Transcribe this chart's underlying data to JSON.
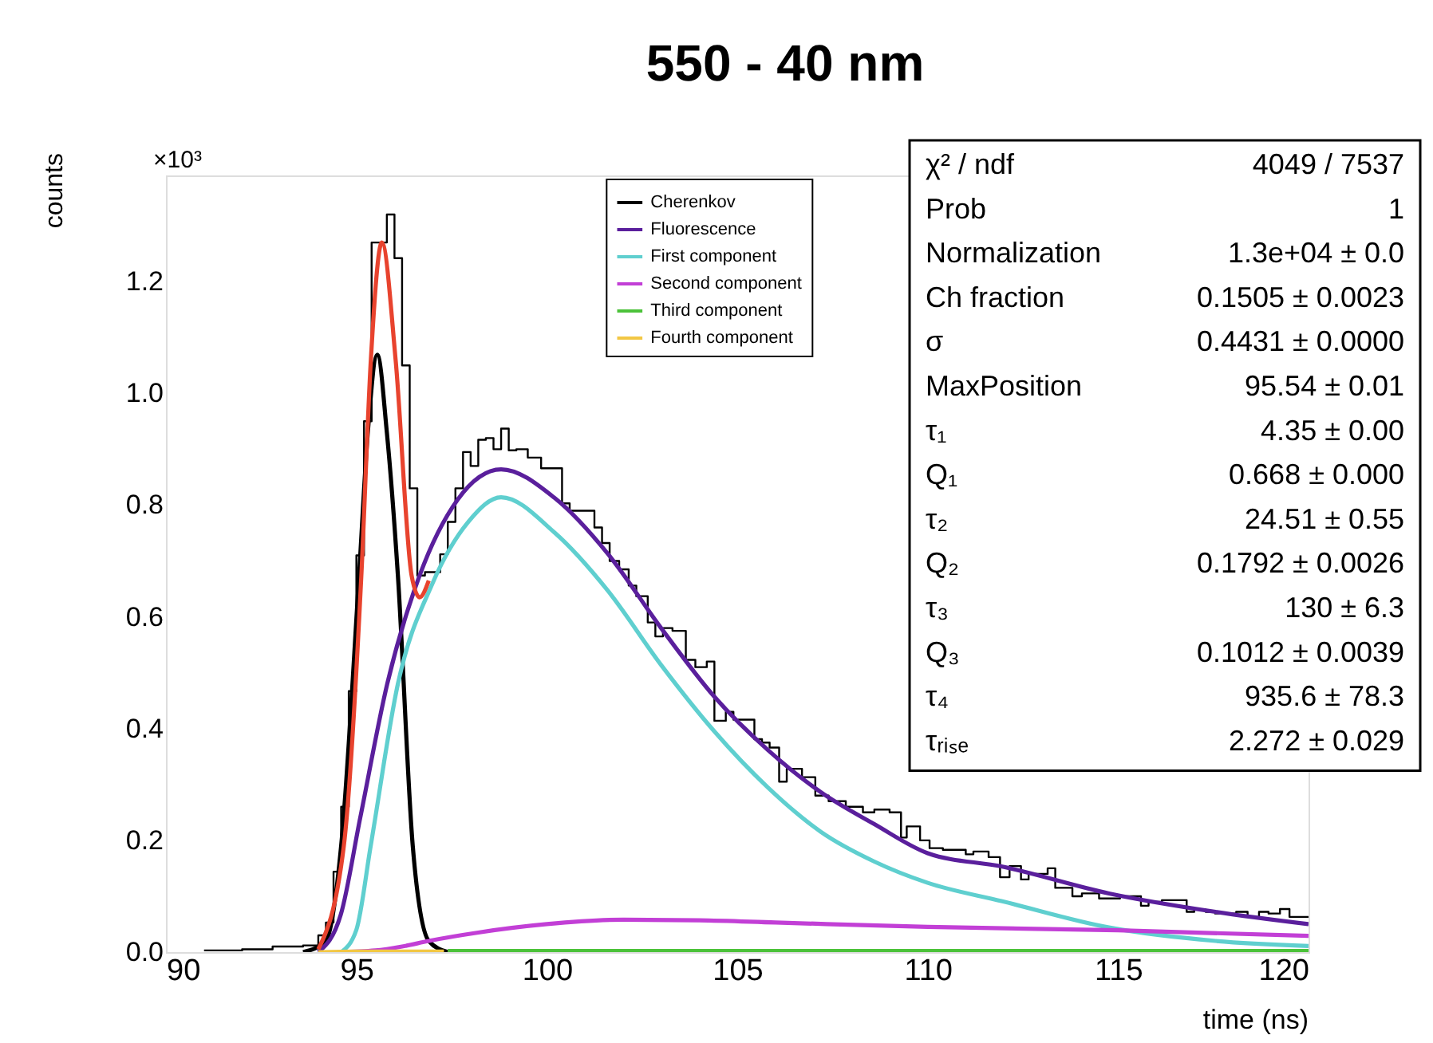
{
  "chart_data": {
    "type": "line",
    "title": "550 - 40 nm",
    "xlabel": "time (ns)",
    "ylabel": "counts",
    "xlim": [
      90,
      120
    ],
    "xticks": [
      90,
      95,
      100,
      105,
      110,
      115,
      120
    ],
    "ylim": [
      0,
      1.39
    ],
    "yticks": [
      {
        "value": 0,
        "label": "0.0"
      },
      0.2,
      0.4,
      0.6,
      0.8,
      {
        "value": 1,
        "label": "1.0"
      },
      1.2
    ],
    "grid": false,
    "legend": "top",
    "line_style": "solid",
    "marker": "none",
    "annotations": [
      "×10³",
      "χ² / ndf",
      "4049 / 7537",
      "Prob",
      "1",
      "Normalization",
      "1.3e+04 ± 0.0",
      "Ch fraction",
      "0.1505 ± 0.0023",
      "σ",
      "0.4431 ± 0.0000",
      "MaxPosition",
      "95.54 ± 0.01",
      "τ₁",
      "4.35 ± 0.00",
      "Q₁",
      "0.668 ± 0.000",
      "τ₂",
      "24.51 ± 0.55",
      "Q₂",
      "0.1792 ± 0.0026",
      "τ₃",
      "130 ± 6.3",
      "Q₃",
      "0.1012 ± 0.0039",
      "τ₄",
      "935.6 ± 78.3",
      "τᵣᵢₛₑ",
      "2.272 ± 0.029"
    ],
    "series": [
      {
        "type": "step",
        "color": "#000000",
        "x": [
          91.0,
          92.0,
          92.8,
          93.6,
          94.0,
          94.2,
          94.4,
          94.6,
          94.8,
          95.0,
          95.2,
          95.4,
          95.6,
          95.8,
          96.0,
          96.2,
          96.4,
          96.6,
          96.8,
          97.2,
          97.4,
          97.6,
          97.8,
          98.0,
          98.2,
          98.4,
          98.6,
          98.8,
          99.0,
          99.2,
          99.5,
          99.85,
          100.1,
          100.4,
          100.6,
          101.25,
          101.45,
          101.65,
          101.9,
          102.15,
          102.35,
          102.65,
          102.85,
          103.05,
          103.3,
          103.65,
          103.9,
          104.2,
          104.4,
          104.7,
          104.9,
          105.45,
          105.65,
          105.85,
          106.1,
          106.3,
          106.7,
          107.05,
          107.4,
          107.85,
          108.3,
          108.6,
          109.0,
          109.3,
          109.45,
          109.8,
          110.05,
          110.4,
          111.0,
          111.2,
          111.6,
          111.9,
          112.15,
          112.45,
          112.65,
          113.15,
          113.35,
          113.8,
          114.05,
          114.5,
          115.05,
          115.6,
          115.8,
          116.15,
          116.8,
          117.0,
          117.3,
          117.55,
          118.1,
          118.4,
          118.7,
          118.95,
          119.25,
          119.5,
          119.8,
          120.0
        ],
        "values": [
          0.003,
          0.005,
          0.01,
          0.012,
          0.03,
          0.053,
          0.144,
          0.26,
          0.467,
          0.71,
          0.95,
          1.27,
          1.27,
          1.32,
          1.242,
          1.05,
          0.83,
          0.674,
          0.68,
          0.712,
          0.77,
          0.83,
          0.895,
          0.87,
          0.917,
          0.92,
          0.9,
          0.937,
          0.898,
          0.9,
          0.885,
          0.866,
          0.866,
          0.803,
          0.79,
          0.76,
          0.732,
          0.7,
          0.685,
          0.656,
          0.637,
          0.59,
          0.565,
          0.58,
          0.575,
          0.523,
          0.51,
          0.52,
          0.414,
          0.43,
          0.416,
          0.381,
          0.375,
          0.366,
          0.305,
          0.328,
          0.313,
          0.28,
          0.27,
          0.26,
          0.25,
          0.255,
          0.25,
          0.205,
          0.225,
          0.2,
          0.186,
          0.183,
          0.175,
          0.18,
          0.17,
          0.134,
          0.154,
          0.13,
          0.14,
          0.15,
          0.115,
          0.1,
          0.105,
          0.096,
          0.1,
          0.083,
          0.09,
          0.093,
          0.072,
          0.076,
          0.072,
          0.069,
          0.072,
          0.063,
          0.072,
          0.069,
          0.077,
          0.063,
          0.063,
          0.063
        ]
      },
      {
        "name": "Cherenkov",
        "color": "#000000",
        "x": [
          93.6,
          94.2,
          94.6,
          95.07,
          95.3,
          95.55,
          95.8,
          96.09,
          96.48,
          96.9,
          97.4
        ],
        "values": [
          0.0,
          0.02,
          0.19,
          0.674,
          0.93,
          1.069,
          0.93,
          0.674,
          0.19,
          0.02,
          0.0
        ]
      },
      {
        "name": "Fluorescence",
        "color": "#5a1f9c",
        "x": [
          94.0,
          94.59,
          95.1,
          95.81,
          96.66,
          97.66,
          98.8,
          100.2,
          101.6,
          103.0,
          104.4,
          105.8,
          107.2,
          108.6,
          110.0,
          111.96,
          114.76,
          117.56,
          120.0
        ],
        "values": [
          0.0,
          0.067,
          0.24,
          0.48,
          0.674,
          0.81,
          0.864,
          0.813,
          0.713,
          0.58,
          0.457,
          0.362,
          0.286,
          0.229,
          0.177,
          0.153,
          0.105,
          0.072,
          0.05
        ]
      },
      {
        "name": "First component",
        "color": "#5fcfcf",
        "x": [
          94.6,
          95.0,
          95.38,
          96.09,
          97.0,
          97.94,
          98.8,
          100.2,
          101.6,
          103.0,
          104.4,
          105.8,
          107.2,
          108.6,
          110.0,
          111.96,
          114.76,
          117.56,
          120.0
        ],
        "values": [
          0.0,
          0.04,
          0.192,
          0.48,
          0.66,
          0.77,
          0.814,
          0.751,
          0.647,
          0.514,
          0.395,
          0.295,
          0.215,
          0.162,
          0.124,
          0.091,
          0.044,
          0.02,
          0.011
        ]
      },
      {
        "name": "Second component",
        "color": "#c23fd6",
        "x": [
          94.5,
          95.5,
          96.2,
          96.9,
          98.2,
          100.0,
          102.0,
          104.0,
          106.0,
          110.0,
          115.0,
          120.0
        ],
        "values": [
          0.0,
          0.003,
          0.01,
          0.02,
          0.035,
          0.05,
          0.058,
          0.057,
          0.053,
          0.045,
          0.039,
          0.029
        ]
      },
      {
        "name": "Third component",
        "color": "#4cc23a",
        "x": [
          97.4,
          120.0
        ],
        "values": [
          0.002,
          0.002
        ]
      },
      {
        "name": "Fourth component",
        "color": "#f2c744",
        "x": [
          94.0,
          95.0,
          96.5,
          97.3
        ],
        "values": [
          0.0,
          0.001,
          0.001,
          0.001
        ]
      },
      {
        "color": "#e8432e",
        "x": [
          94.0,
          94.67,
          95.13,
          95.38,
          95.67,
          96.03,
          96.45,
          96.66,
          96.9
        ],
        "values": [
          0.005,
          0.19,
          0.674,
          1.06,
          1.27,
          1.06,
          0.674,
          0.635,
          0.665
        ]
      }
    ]
  }
}
